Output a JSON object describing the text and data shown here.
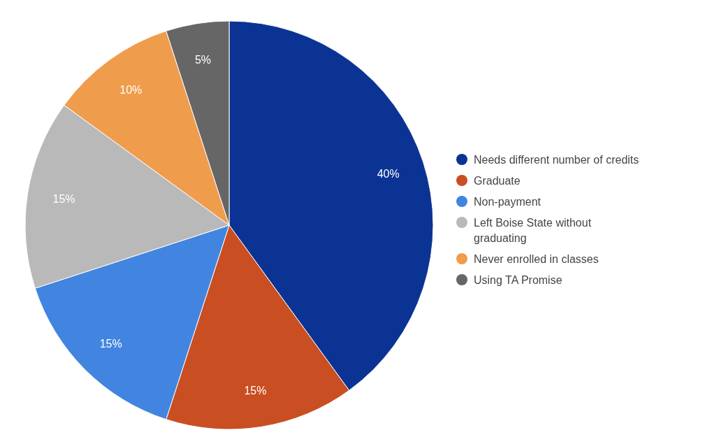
{
  "chart_data": {
    "type": "pie",
    "categories": [
      "Needs different number of credits",
      "Graduate",
      "Non-payment",
      "Left Boise State without graduating",
      "Never enrolled in classes",
      "Using TA Promise"
    ],
    "values": [
      40,
      15,
      15,
      15,
      10,
      5
    ],
    "colors": [
      "#0b3394",
      "#c94e22",
      "#4285e0",
      "#b9b9b9",
      "#f09c4d",
      "#666666"
    ],
    "value_labels": [
      "40%",
      "15%",
      "15%",
      "15%",
      "10%",
      "5%"
    ],
    "legend": "right"
  }
}
